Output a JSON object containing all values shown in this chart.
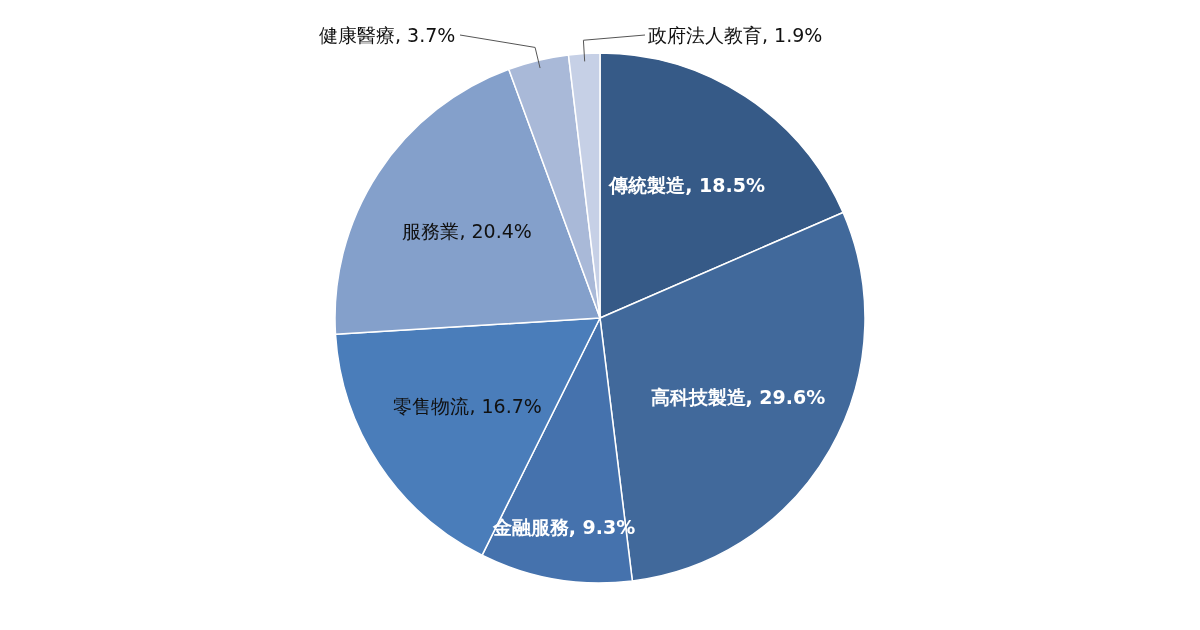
{
  "chart_data": {
    "type": "pie",
    "categories": [
      "傳統製造",
      "高科技製造",
      "金融服務",
      "零售物流",
      "服務業",
      "健康醫療",
      "政府法人教育"
    ],
    "values": [
      18.5,
      29.6,
      9.3,
      16.7,
      20.4,
      3.7,
      1.9
    ],
    "value_labels": [
      "18.5%",
      "29.6%",
      "9.3%",
      "16.7%",
      "20.4%",
      "3.7%",
      "1.9%"
    ],
    "colors": [
      "#365a87",
      "#41699b",
      "#4572ad",
      "#4a7dba",
      "#84a0cb",
      "#a9b9d8",
      "#c6d0e6"
    ]
  }
}
